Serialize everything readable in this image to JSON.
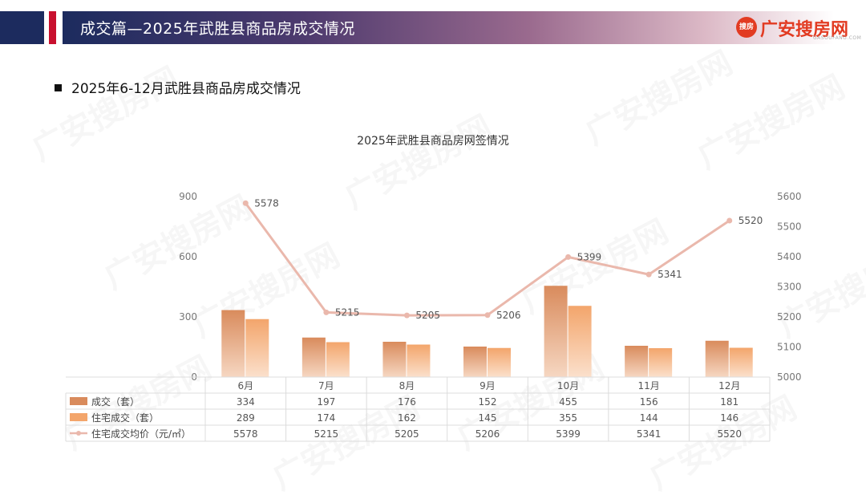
{
  "header": {
    "title": "成交篇—2025年武胜县商品房成交情况"
  },
  "logo": {
    "badge": "搜房",
    "text": "广安搜房网",
    "sub": "GASOUFANG.COM"
  },
  "section": {
    "heading": "2025年6-12月武胜县商品房成交情况"
  },
  "watermark": "广安搜房网",
  "colors": {
    "bar1": "#d98b5c",
    "bar2": "#f3a56b",
    "line": "#eab8ac",
    "navy": "#1c2b5e",
    "red": "#c8102e"
  },
  "chart_data": {
    "type": "bar",
    "title": "2025年武胜县商品房网签情况",
    "categories": [
      "6月",
      "7月",
      "8月",
      "9月",
      "10月",
      "11月",
      "12月"
    ],
    "series": [
      {
        "name": "成交（套）",
        "type": "bar",
        "axis": "left",
        "values": [
          334,
          197,
          176,
          152,
          455,
          156,
          181
        ]
      },
      {
        "name": "住宅成交（套）",
        "type": "bar",
        "axis": "left",
        "values": [
          289,
          174,
          162,
          145,
          355,
          144,
          146
        ]
      },
      {
        "name": "住宅成交均价（元/㎡）",
        "type": "line",
        "axis": "right",
        "values": [
          5578,
          5215,
          5205,
          5206,
          5399,
          5341,
          5520
        ]
      }
    ],
    "y_left": {
      "range": [
        0,
        900
      ],
      "ticks": [
        0,
        300,
        600,
        900
      ]
    },
    "y_right": {
      "range": [
        5000,
        5600
      ],
      "ticks": [
        5000,
        5100,
        5200,
        5300,
        5400,
        5500,
        5600
      ]
    },
    "grid": false,
    "legend": "data-table"
  }
}
